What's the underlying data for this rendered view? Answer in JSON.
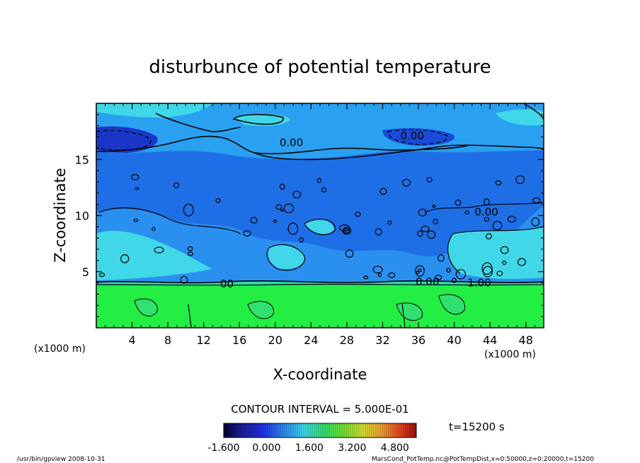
{
  "chart_data": {
    "type": "heatmap",
    "title": "disturbunce of potential temperature",
    "xlabel": "X-coordinate",
    "ylabel": "Z-coordinate",
    "x_unit_label": "(x1000 m)",
    "y_unit_label": "(x1000 m)",
    "xlim": [
      0,
      50
    ],
    "ylim": [
      0,
      20
    ],
    "x_ticks": [
      4,
      8,
      12,
      16,
      20,
      24,
      28,
      32,
      36,
      40,
      44,
      48
    ],
    "y_ticks": [
      5,
      10,
      15
    ],
    "x_tick_labels": [
      "4",
      "8",
      "12",
      "16",
      "20",
      "24",
      "28",
      "32",
      "36",
      "40",
      "44",
      "48"
    ],
    "y_tick_labels": [
      "5",
      "10",
      "15"
    ],
    "contour_interval_text": "CONTOUR INTERVAL = 5.000E-01",
    "contour_labels": [
      {
        "text": "0.00",
        "x": 21.8,
        "z": 16.5
      },
      {
        "text": "0.00",
        "x": 35.3,
        "z": 17.1
      },
      {
        "text": "0.00",
        "x": 43.6,
        "z": 10.3
      },
      {
        "text": "0.00",
        "x": 37.0,
        "z": 4.1
      },
      {
        "text": "1.00",
        "x": 42.8,
        "z": 4.0
      },
      {
        "text": "00",
        "x": 14.6,
        "z": 3.9
      }
    ],
    "colorbar": {
      "min": -1.6,
      "max": 5.6,
      "tick_labels": [
        "-1.600",
        "0.000",
        "1.600",
        "3.200",
        "4.800"
      ],
      "tick_values": [
        -1.6,
        0.0,
        1.6,
        3.2,
        4.8
      ]
    },
    "time_label": "t=15200 s",
    "footer_left": "/usr/bin/gpview   2008-10-31",
    "footer_right": "MarsCond_PotTemp.nc@PotTempDist,x=0:50000,z=0:20000,t=15200",
    "colors": {
      "lower_layer": "#22ee44",
      "mid_layer": "#1e6fe6",
      "upper_layer": "#2aa0f0",
      "cold_anomaly": "#1a36c8",
      "warm_cloud": "#40d8e8"
    }
  }
}
